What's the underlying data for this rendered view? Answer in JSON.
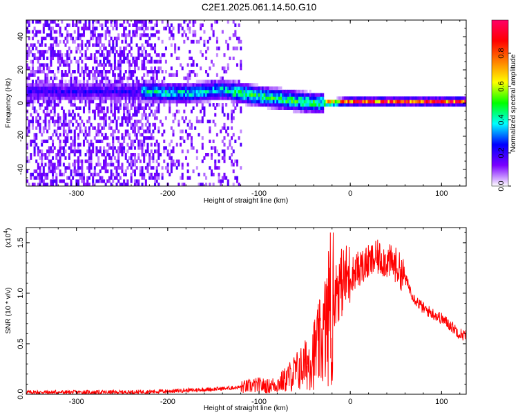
{
  "page": {
    "title": "C2E1.2025.061.14.50.G10"
  },
  "chart_data": [
    {
      "type": "heatmap",
      "title": "C2E1.2025.061.14.50.G10",
      "xlabel": "Height of straight line (km)",
      "ylabel": "Frequency (Hz)",
      "xlim": [
        -355,
        127
      ],
      "ylim": [
        -50,
        50
      ],
      "x_ticks": [
        -300,
        -200,
        -100,
        0,
        100
      ],
      "x_tick_labels": [
        "-300",
        "-200",
        "-100",
        "0",
        "100"
      ],
      "y_ticks": [
        -40,
        -20,
        0,
        20,
        40
      ],
      "y_tick_labels": [
        "-40",
        "-20",
        "0",
        "20",
        "40"
      ],
      "colorbar": {
        "label": "Normalized spectral amplitude",
        "range": [
          0,
          1
        ],
        "ticks": [
          0.0,
          0.2,
          0.4,
          0.6,
          0.8
        ],
        "tick_labels": [
          "0.0",
          "0.2",
          "0.4",
          "0.6",
          "0.8"
        ],
        "colors": [
          "#ffffff",
          "#7a00ff",
          "#0000ff",
          "#00ffff",
          "#00ff00",
          "#ffff00",
          "#ff8000",
          "#ff0000",
          "#ff0066"
        ]
      },
      "signal_center_frequency": [
        {
          "x": -230,
          "y": 6
        },
        {
          "x": -180,
          "y": 5
        },
        {
          "x": -140,
          "y": 7
        },
        {
          "x": -110,
          "y": 4
        },
        {
          "x": -70,
          "y": 1
        },
        {
          "x": -40,
          "y": -1
        },
        {
          "x": 0,
          "y": 0
        },
        {
          "x": 127,
          "y": 0
        }
      ],
      "grid": false
    },
    {
      "type": "line",
      "xlabel": "Height of straight line (km)",
      "ylabel": "SNR (10 * v/v)",
      "y_multiplier": "(x10^4)",
      "xlim": [
        -355,
        127
      ],
      "ylim": [
        0,
        1.65
      ],
      "x_ticks": [
        -300,
        -200,
        -100,
        0,
        100
      ],
      "x_tick_labels": [
        "-300",
        "-200",
        "-100",
        "0",
        "100"
      ],
      "y_ticks": [
        0.0,
        0.5,
        1.0,
        1.5
      ],
      "y_tick_labels": [
        "0.0",
        "0.5",
        "1.0",
        "1.5"
      ],
      "series": [
        {
          "color": "#ff0000",
          "x": [
            -355,
            -300,
            -250,
            -200,
            -150,
            -120,
            -100,
            -90,
            -80,
            -70,
            -60,
            -50,
            -40,
            -30,
            -25,
            -20,
            -18,
            -15,
            -10,
            -5,
            0,
            10,
            20,
            30,
            40,
            50,
            60,
            70,
            80,
            90,
            100,
            110,
            120,
            127
          ],
          "y": [
            0.02,
            0.02,
            0.02,
            0.03,
            0.05,
            0.07,
            0.09,
            0.08,
            0.1,
            0.15,
            0.22,
            0.28,
            0.4,
            0.55,
            0.75,
            0.95,
            1.0,
            1.05,
            1.1,
            1.15,
            1.18,
            1.25,
            1.3,
            1.35,
            1.32,
            1.28,
            1.15,
            0.95,
            0.85,
            0.8,
            0.75,
            0.68,
            0.6,
            0.58
          ]
        }
      ],
      "grid": false
    }
  ]
}
